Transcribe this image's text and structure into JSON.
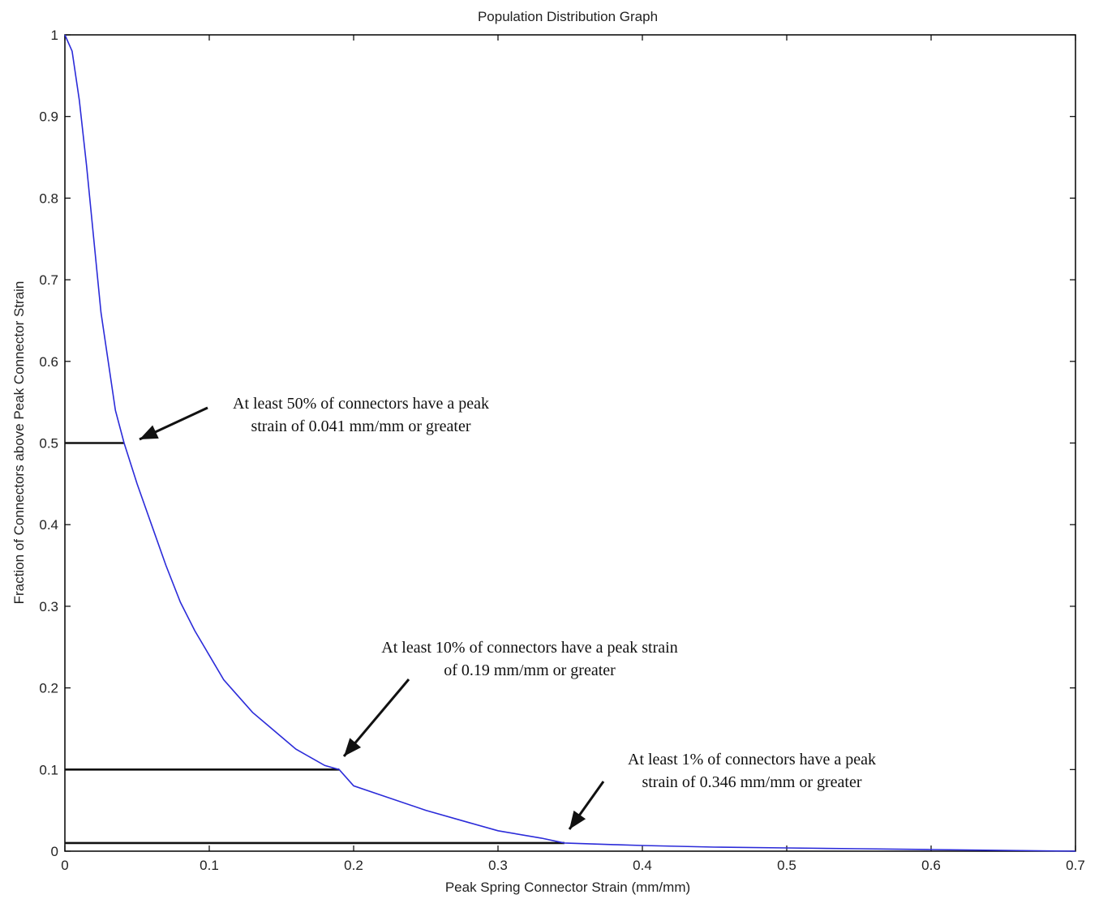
{
  "chart_data": {
    "type": "line",
    "title": "Population Distribution Graph",
    "xlabel": "Peak Spring Connector Strain (mm/mm)",
    "ylabel": "Fraction of Connectors above Peak Connector Strain",
    "xlim": [
      0,
      0.7
    ],
    "ylim": [
      0,
      1
    ],
    "x_ticks": [
      "0",
      "0.1",
      "0.2",
      "0.3",
      "0.4",
      "0.5",
      "0.6",
      "0.7"
    ],
    "y_ticks": [
      "0",
      "0.1",
      "0.2",
      "0.3",
      "0.4",
      "0.5",
      "0.6",
      "0.7",
      "0.8",
      "0.9",
      "1"
    ],
    "grid": false,
    "line_color": "#2b2bd9",
    "series": [
      {
        "x": [
          0.0,
          0.005,
          0.01,
          0.015,
          0.02,
          0.025,
          0.03,
          0.035,
          0.041,
          0.05,
          0.06,
          0.07,
          0.08,
          0.09,
          0.1,
          0.11,
          0.12,
          0.13,
          0.14,
          0.15,
          0.16,
          0.17,
          0.18,
          0.19,
          0.2,
          0.22,
          0.25,
          0.28,
          0.3,
          0.33,
          0.346,
          0.38,
          0.4,
          0.45,
          0.5,
          0.55,
          0.6,
          0.65,
          0.7
        ],
        "y": [
          1.0,
          0.98,
          0.92,
          0.84,
          0.75,
          0.66,
          0.6,
          0.54,
          0.5,
          0.45,
          0.4,
          0.35,
          0.305,
          0.27,
          0.24,
          0.21,
          0.19,
          0.17,
          0.155,
          0.14,
          0.125,
          0.115,
          0.105,
          0.1,
          0.08,
          0.068,
          0.05,
          0.035,
          0.025,
          0.016,
          0.01,
          0.008,
          0.007,
          0.005,
          0.004,
          0.003,
          0.002,
          0.001,
          0.0
        ]
      }
    ],
    "reference_lines": [
      {
        "y": 0.5,
        "x_end": 0.041,
        "color": "#111111"
      },
      {
        "y": 0.1,
        "x_end": 0.19,
        "color": "#111111"
      },
      {
        "y": 0.01,
        "x_end": 0.346,
        "color": "#111111"
      }
    ],
    "annotations": [
      {
        "lines": [
          "At least 50% of connectors have a peak",
          "strain of 0.041 mm/mm or greater"
        ],
        "point": [
          0.041,
          0.5
        ]
      },
      {
        "lines": [
          "At least 10% of connectors have a peak strain",
          "of 0.19 mm/mm or greater"
        ],
        "point": [
          0.19,
          0.1
        ]
      },
      {
        "lines": [
          "At least 1% of connectors have a peak",
          "strain of 0.346 mm/mm or greater"
        ],
        "point": [
          0.346,
          0.01
        ]
      }
    ]
  }
}
